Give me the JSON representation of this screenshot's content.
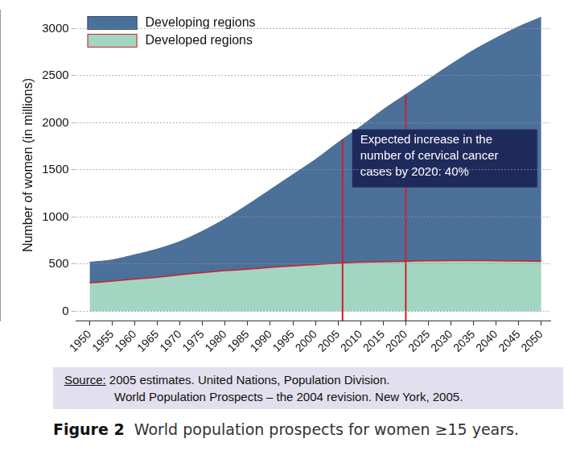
{
  "chart_data": {
    "type": "area",
    "title": "World population prospects for women ≥15 years.",
    "figure_label": "Figure 2",
    "y_label": "Number of women (in millions)",
    "x": [
      1950,
      1955,
      1960,
      1965,
      1970,
      1975,
      1980,
      1985,
      1990,
      1995,
      2000,
      2005,
      2010,
      2015,
      2020,
      2025,
      2030,
      2035,
      2040,
      2045,
      2050
    ],
    "series": [
      {
        "name": "Developing regions",
        "color": "#4b7099",
        "values": [
          220,
          225,
          260,
          300,
          355,
          440,
          550,
          685,
          825,
          970,
          1115,
          1280,
          1440,
          1615,
          1770,
          1925,
          2083,
          2232,
          2365,
          2487,
          2590
        ]
      },
      {
        "name": "Developed regions",
        "color": "#a3d6c1",
        "values": [
          300,
          320,
          340,
          360,
          385,
          410,
          430,
          445,
          465,
          480,
          495,
          510,
          520,
          525,
          530,
          535,
          537,
          538,
          535,
          533,
          530
        ]
      }
    ],
    "stacked": true,
    "xlim": [
      1947,
      2052
    ],
    "xticks": [
      1950,
      1955,
      1960,
      1965,
      1970,
      1975,
      1980,
      1985,
      1990,
      1995,
      2000,
      2005,
      2010,
      2015,
      2020,
      2025,
      2030,
      2035,
      2040,
      2045,
      2050
    ],
    "ylim": [
      -100,
      3200
    ],
    "yticks": [
      0,
      500,
      1000,
      1500,
      2000,
      2500,
      3000
    ],
    "grid": true,
    "legend": "upper left",
    "vertical_lines": [
      2006,
      2020
    ],
    "annotation": "Expected increase in the number of cervical cancer cases by 2020: 40%",
    "source_label": "Source:",
    "source": [
      "2005 estimates. United Nations, Population Division.",
      "World Population Prospects – the 2004 revision. New York, 2005."
    ]
  }
}
